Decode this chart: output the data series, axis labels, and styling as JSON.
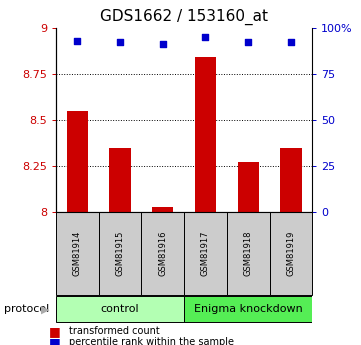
{
  "title": "GDS1662 / 153160_at",
  "samples": [
    "GSM81914",
    "GSM81915",
    "GSM81916",
    "GSM81917",
    "GSM81918",
    "GSM81919"
  ],
  "transformed_counts": [
    8.55,
    8.35,
    8.03,
    8.84,
    8.27,
    8.35
  ],
  "percentile_ranks": [
    93,
    92,
    91,
    95,
    92,
    92
  ],
  "ylim_left": [
    8.0,
    9.0
  ],
  "ylim_right": [
    0,
    100
  ],
  "yticks_left": [
    8.0,
    8.25,
    8.5,
    8.75,
    9.0
  ],
  "yticks_right": [
    0,
    25,
    50,
    75,
    100
  ],
  "ytick_labels_left": [
    "8",
    "8.25",
    "8.5",
    "8.75",
    "9"
  ],
  "ytick_labels_right": [
    "0",
    "25",
    "50",
    "75",
    "100%"
  ],
  "grid_values": [
    8.25,
    8.5,
    8.75
  ],
  "bar_color": "#cc0000",
  "scatter_color": "#0000cc",
  "control_label": "control",
  "knockdown_label": "Enigma knockdown",
  "protocol_label": "protocol",
  "legend_bar_label": "transformed count",
  "legend_scatter_label": "percentile rank within the sample",
  "control_color": "#b3ffb3",
  "knockdown_color": "#55ee55",
  "sample_bg_color": "#cccccc",
  "n_control": 3,
  "n_knockdown": 3,
  "bar_width": 0.5,
  "title_fontsize": 11,
  "axis_fontsize": 8,
  "tick_label_color_left": "#cc0000",
  "tick_label_color_right": "#0000cc"
}
